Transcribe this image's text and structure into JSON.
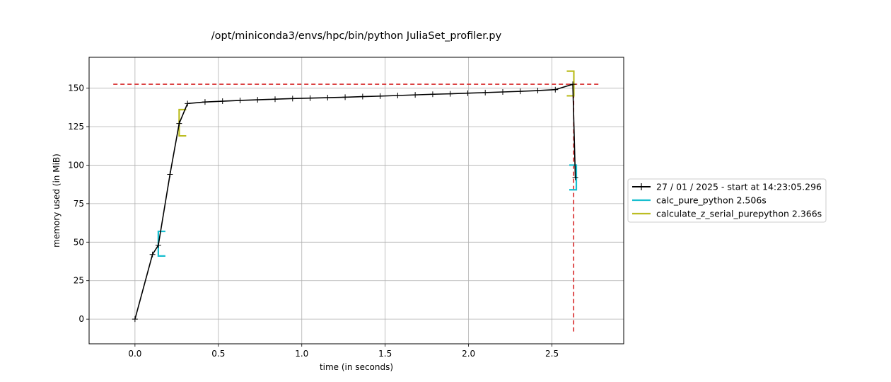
{
  "chart_data": {
    "type": "line",
    "title": "/opt/miniconda3/envs/hpc/bin/python JuliaSet_profiler.py",
    "xlabel": "time (in seconds)",
    "ylabel": "memory used (in MiB)",
    "xlim": [
      -0.275,
      2.93
    ],
    "ylim": [
      -16,
      170
    ],
    "xticks": [
      0.0,
      0.5,
      1.0,
      1.5,
      2.0,
      2.5
    ],
    "xtick_labels": [
      "0.0",
      "0.5",
      "1.0",
      "1.5",
      "2.0",
      "2.5"
    ],
    "yticks": [
      0,
      25,
      50,
      75,
      100,
      125,
      150
    ],
    "ytick_labels": [
      "0",
      "25",
      "50",
      "75",
      "100",
      "125",
      "150"
    ],
    "grid": true,
    "legend_placement": "right-outside",
    "series": [
      {
        "name": "27 / 01 / 2025 - start at 14:23:05.296",
        "color": "#000000",
        "marker": "+",
        "x": [
          0.0,
          0.105,
          0.14,
          0.21,
          0.265,
          0.315,
          0.42,
          0.525,
          0.63,
          0.735,
          0.84,
          0.945,
          1.05,
          1.155,
          1.26,
          1.365,
          1.47,
          1.575,
          1.68,
          1.785,
          1.89,
          1.995,
          2.1,
          2.205,
          2.31,
          2.415,
          2.52,
          2.625,
          2.64
        ],
        "y": [
          0,
          42,
          48,
          94,
          127,
          140,
          141,
          141.5,
          142,
          142.4,
          142.8,
          143.2,
          143.5,
          143.8,
          144.1,
          144.5,
          144.8,
          145.2,
          145.6,
          146,
          146.3,
          146.7,
          147.1,
          147.5,
          147.9,
          148.4,
          149,
          152.5,
          92
        ]
      }
    ],
    "function_brackets": [
      {
        "name": "calc_pure_python 2.506s",
        "color": "#17becf",
        "start_time": 0.14,
        "end_time": 2.646,
        "start_mem": 41,
        "start_mem_high": 57,
        "end_mem": 84,
        "end_mem_high": 100
      },
      {
        "name": "calculate_z_serial_purepython 2.366s",
        "color": "#bcbd22",
        "start_time": 0.265,
        "end_time": 2.631,
        "start_mem": 119,
        "start_mem_high": 136,
        "end_mem": 145,
        "end_mem_high": 161
      }
    ],
    "max_memory_line": {
      "y": 152.5,
      "x_from": -0.13,
      "x_to": 2.78,
      "color": "#d62728"
    },
    "max_time_line": {
      "x": 2.63,
      "y_from": -8,
      "y_to": 152.5,
      "color": "#d62728"
    }
  }
}
